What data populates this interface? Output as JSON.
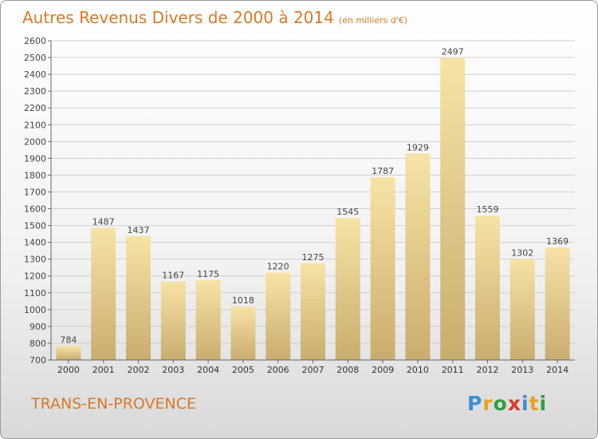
{
  "title": "Autres Revenus Divers de 2000 à 2014",
  "subtitle": "(en milliers d'€)",
  "commune": "TRANS-EN-PROVENCE",
  "logo": {
    "letters": [
      {
        "char": "P",
        "color": "#3b8fd6"
      },
      {
        "char": "r",
        "color": "#e8a21f"
      },
      {
        "char": "o",
        "color": "#2f9e44"
      },
      {
        "char": "x",
        "color": "#d43d2a"
      },
      {
        "char": "i",
        "color": "#3b8fd6"
      },
      {
        "char": "t",
        "color": "#e8a21f"
      },
      {
        "char": "i",
        "color": "#2f9e44"
      }
    ]
  },
  "chart_data": {
    "type": "bar",
    "categories": [
      "2000",
      "2001",
      "2002",
      "2003",
      "2004",
      "2005",
      "2006",
      "2007",
      "2008",
      "2009",
      "2010",
      "2011",
      "2012",
      "2013",
      "2014"
    ],
    "values": [
      784,
      1487,
      1437,
      1167,
      1175,
      1018,
      1220,
      1275,
      1545,
      1787,
      1929,
      2497,
      1559,
      1302,
      1369
    ],
    "ylim": [
      700,
      2600
    ],
    "yticks": [
      700,
      800,
      900,
      1000,
      1100,
      1200,
      1300,
      1400,
      1500,
      1600,
      1700,
      1800,
      1900,
      2000,
      2100,
      2200,
      2300,
      2400,
      2500,
      2600
    ],
    "grid": true,
    "bar_color_light": "#f7e3a6",
    "bar_color_dark": "#c9ad6e",
    "title_color": "#d77a26"
  }
}
